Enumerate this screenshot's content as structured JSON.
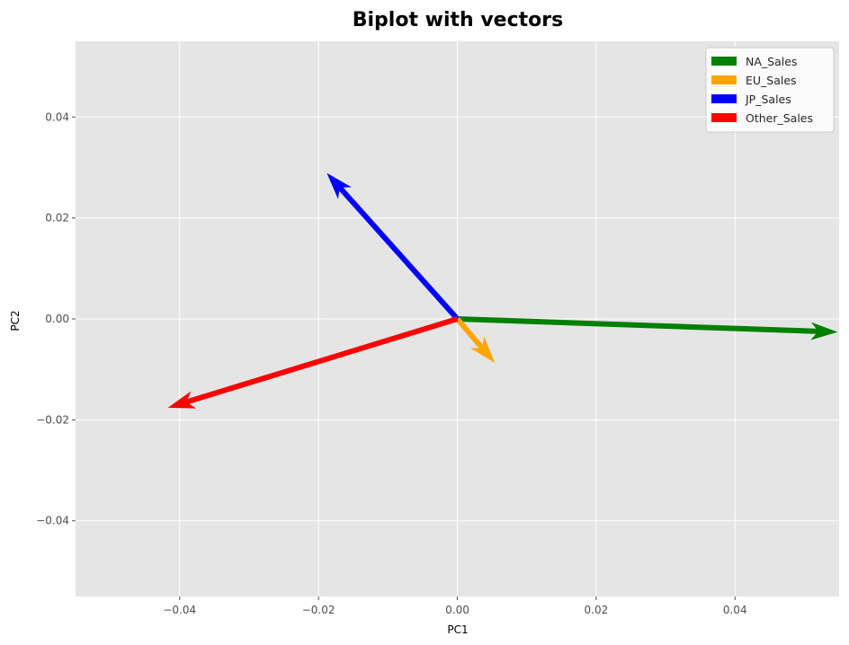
{
  "chart_data": {
    "type": "biplot",
    "title": "Biplot with vectors",
    "xlabel": "PC1",
    "ylabel": "PC2",
    "xlim": [
      -0.055,
      0.055
    ],
    "ylim": [
      -0.055,
      0.055
    ],
    "xticks": [
      -0.04,
      -0.02,
      0.0,
      0.02,
      0.04
    ],
    "xtick_labels": [
      "−0.04",
      "−0.02",
      "0.00",
      "0.02",
      "0.04"
    ],
    "yticks": [
      -0.04,
      -0.02,
      0.0,
      0.02,
      0.04
    ],
    "ytick_labels": [
      "−0.04",
      "−0.02",
      "0.00",
      "0.02",
      "0.04"
    ],
    "grid": true,
    "legend_position": "top-right",
    "vectors": [
      {
        "name": "NA_Sales",
        "color": "#008000",
        "x": 0.0548,
        "y": -0.0026
      },
      {
        "name": "EU_Sales",
        "color": "#FFA500",
        "x": 0.0054,
        "y": -0.0087
      },
      {
        "name": "JP_Sales",
        "color": "#0000FF",
        "x": -0.0188,
        "y": 0.0289
      },
      {
        "name": "Other_Sales",
        "color": "#FF0000",
        "x": -0.0417,
        "y": -0.0176
      }
    ]
  },
  "theme": {
    "plot_background": "#E5E5E5",
    "grid_color": "#FFFFFF"
  }
}
